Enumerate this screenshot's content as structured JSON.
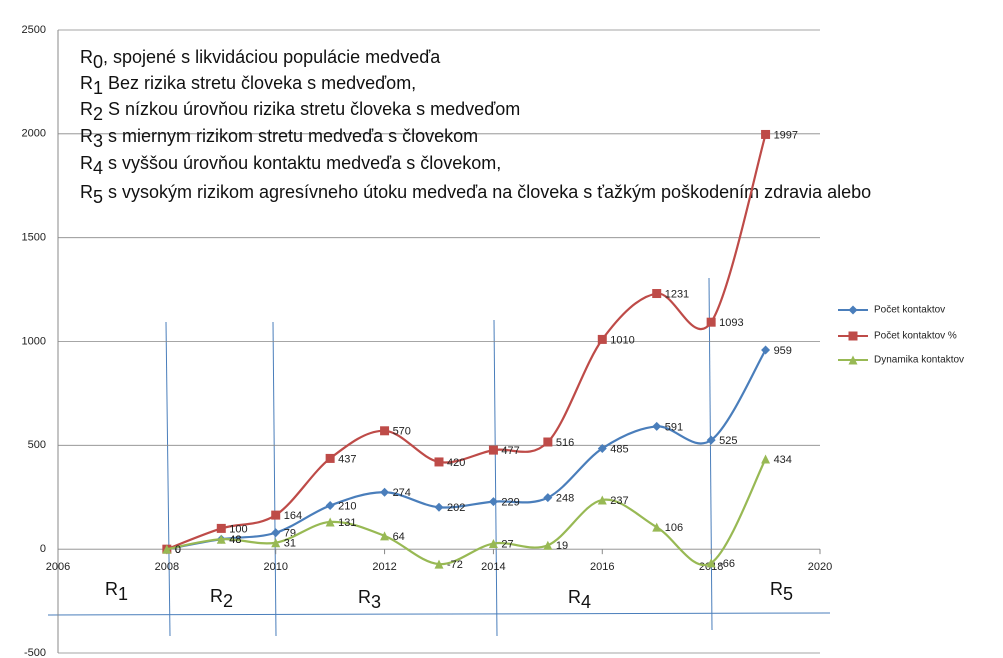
{
  "chart_data": {
    "type": "line",
    "notes": [
      {
        "prefix": "R",
        "sub": "0",
        "text": ", spojené s likvidáciou populácie medveďa"
      },
      {
        "prefix": "R",
        "sub": "1",
        "text": " Bez rizika stretu človeka s medveďom,"
      },
      {
        "prefix": "R",
        "sub": "2",
        "text": " S nízkou úrovňou rizika stretu človeka s medveďom"
      },
      {
        "prefix": "R",
        "sub": "3",
        "text": " s miernym rizikom stretu medveďa s človekom"
      },
      {
        "prefix": "R",
        "sub": "4",
        "text": " s vyššou úrovňou kontaktu medveďa s človekom,"
      },
      {
        "prefix": "R",
        "sub": "5",
        "text": " s vysokým rizikom agresívneho útoku medveďa na človeka s ťažkým poškodením zdravia alebo"
      }
    ],
    "regions": [
      {
        "prefix": "R",
        "sub": "1"
      },
      {
        "prefix": "R",
        "sub": "2"
      },
      {
        "prefix": "R",
        "sub": "3"
      },
      {
        "prefix": "R",
        "sub": "4"
      },
      {
        "prefix": "R",
        "sub": "5"
      }
    ],
    "x": [
      2008,
      2009,
      2010,
      2011,
      2012,
      2013,
      2014,
      2015,
      2016,
      2017,
      2018,
      2019
    ],
    "series": [
      {
        "name": "Počet kontaktov",
        "color": "#4a7ebb",
        "marker": "diamond",
        "values": [
          0,
          48,
          79,
          210,
          274,
          202,
          229,
          248,
          485,
          591,
          525,
          959
        ]
      },
      {
        "name": "Počet kontaktov %",
        "color": "#be4b48",
        "marker": "square",
        "values": [
          0,
          100,
          164,
          437,
          570,
          420,
          477,
          516,
          1010,
          1231,
          1093,
          1997
        ]
      },
      {
        "name": "Dynamika kontaktov",
        "color": "#98b954",
        "marker": "triangle",
        "values": [
          0,
          48,
          31,
          131,
          64,
          -72,
          27,
          19,
          237,
          106,
          -66,
          434
        ]
      }
    ],
    "xlim": [
      2006,
      2020
    ],
    "xticks": [
      2006,
      2008,
      2010,
      2012,
      2014,
      2016,
      2018,
      2020
    ],
    "ylim": [
      -500,
      2500
    ],
    "yticks": [
      -500,
      0,
      500,
      1000,
      1500,
      2000,
      2500
    ],
    "grid": true,
    "legend": "right"
  }
}
